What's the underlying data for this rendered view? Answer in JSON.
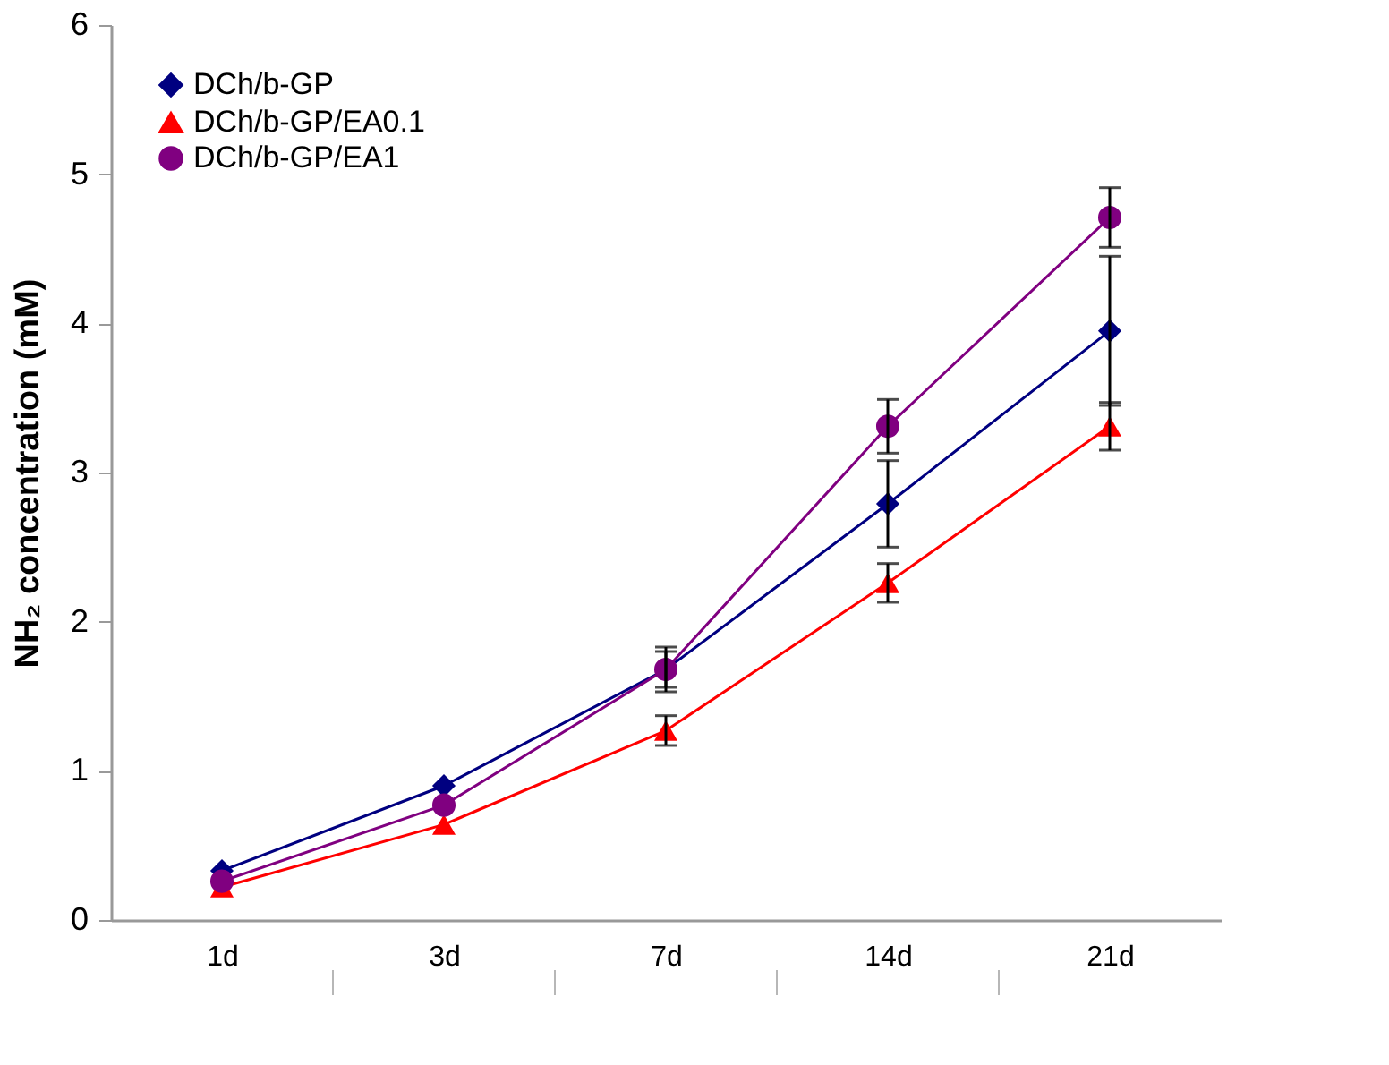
{
  "chart_data": {
    "type": "line",
    "ylabel": "NH₂ concentration (mM)",
    "categories": [
      "1d",
      "3d",
      "7d",
      "14d",
      "21d"
    ],
    "series": [
      {
        "name": "DCh/b-GP",
        "color": "#000080",
        "marker": "diamond",
        "values": [
          0.33,
          0.9,
          1.68,
          2.79,
          3.95
        ],
        "errors": [
          null,
          null,
          0.15,
          0.29,
          0.5
        ]
      },
      {
        "name": "DCh/b-GP/EA0.1",
        "color": "#ff0000",
        "marker": "triangle",
        "values": [
          0.22,
          0.64,
          1.27,
          2.26,
          3.31
        ],
        "errors": [
          null,
          null,
          0.1,
          0.13,
          0.16
        ]
      },
      {
        "name": "DCh/b-GP/EA1",
        "color": "#800080",
        "marker": "circle",
        "values": [
          0.26,
          0.77,
          1.68,
          3.31,
          4.71
        ],
        "errors": [
          null,
          null,
          0.12,
          0.18,
          0.2
        ]
      }
    ],
    "ylim": [
      0,
      6
    ],
    "yticks": [
      0,
      1,
      2,
      3,
      4,
      5,
      6
    ],
    "grid": false,
    "legend": "top left",
    "line_style": "solid"
  }
}
